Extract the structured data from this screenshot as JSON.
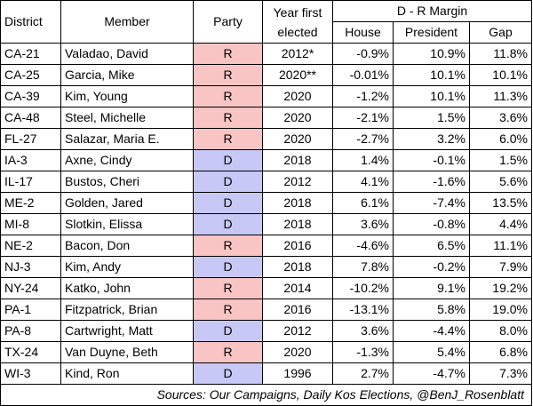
{
  "headers": {
    "district": "District",
    "member": "Member",
    "party": "Party",
    "year_line1": "Year first",
    "year_line2": "elected",
    "margin_group": "D - R Margin",
    "house": "House",
    "president": "President",
    "gap": "Gap"
  },
  "colors": {
    "R": "#f8c4c4",
    "D": "#c8c8f6"
  },
  "rows": [
    {
      "district": "CA-21",
      "member": "Valadao, David",
      "party": "R",
      "year": "2012*",
      "house": "-0.9%",
      "president": "10.9%",
      "gap": "11.8%"
    },
    {
      "district": "CA-25",
      "member": "Garcia, Mike",
      "party": "R",
      "year": "2020**",
      "house": "-0.01%",
      "president": "10.1%",
      "gap": "10.1%"
    },
    {
      "district": "CA-39",
      "member": "Kim, Young",
      "party": "R",
      "year": "2020",
      "house": "-1.2%",
      "president": "10.1%",
      "gap": "11.3%"
    },
    {
      "district": "CA-48",
      "member": "Steel, Michelle",
      "party": "R",
      "year": "2020",
      "house": "-2.1%",
      "president": "1.5%",
      "gap": "3.6%"
    },
    {
      "district": "FL-27",
      "member": "Salazar, Maria E.",
      "party": "R",
      "year": "2020",
      "house": "-2.7%",
      "president": "3.2%",
      "gap": "6.0%"
    },
    {
      "district": "IA-3",
      "member": "Axne, Cindy",
      "party": "D",
      "year": "2018",
      "house": "1.4%",
      "president": "-0.1%",
      "gap": "1.5%"
    },
    {
      "district": "IL-17",
      "member": "Bustos, Cheri",
      "party": "D",
      "year": "2012",
      "house": "4.1%",
      "president": "-1.6%",
      "gap": "5.6%"
    },
    {
      "district": "ME-2",
      "member": "Golden, Jared",
      "party": "D",
      "year": "2018",
      "house": "6.1%",
      "president": "-7.4%",
      "gap": "13.5%"
    },
    {
      "district": "MI-8",
      "member": "Slotkin, Elissa",
      "party": "D",
      "year": "2018",
      "house": "3.6%",
      "president": "-0.8%",
      "gap": "4.4%"
    },
    {
      "district": "NE-2",
      "member": "Bacon, Don",
      "party": "R",
      "year": "2016",
      "house": "-4.6%",
      "president": "6.5%",
      "gap": "11.1%"
    },
    {
      "district": "NJ-3",
      "member": "Kim, Andy",
      "party": "D",
      "year": "2018",
      "house": "7.8%",
      "president": "-0.2%",
      "gap": "7.9%"
    },
    {
      "district": "NY-24",
      "member": "Katko, John",
      "party": "R",
      "year": "2014",
      "house": "-10.2%",
      "president": "9.1%",
      "gap": "19.2%"
    },
    {
      "district": "PA-1",
      "member": "Fitzpatrick, Brian",
      "party": "R",
      "year": "2016",
      "house": "-13.1%",
      "president": "5.8%",
      "gap": "19.0%"
    },
    {
      "district": "PA-8",
      "member": "Cartwright, Matt",
      "party": "D",
      "year": "2012",
      "house": "3.6%",
      "president": "-4.4%",
      "gap": "8.0%"
    },
    {
      "district": "TX-24",
      "member": "Van Duyne, Beth",
      "party": "R",
      "year": "2020",
      "house": "-1.3%",
      "president": "5.4%",
      "gap": "6.8%"
    },
    {
      "district": "WI-3",
      "member": "Kind, Ron",
      "party": "D",
      "year": "1996",
      "house": "2.7%",
      "president": "-4.7%",
      "gap": "7.3%"
    }
  ],
  "sources": "Sources: Our Campaigns, Daily Kos Elections, @BenJ_Rosenblatt"
}
